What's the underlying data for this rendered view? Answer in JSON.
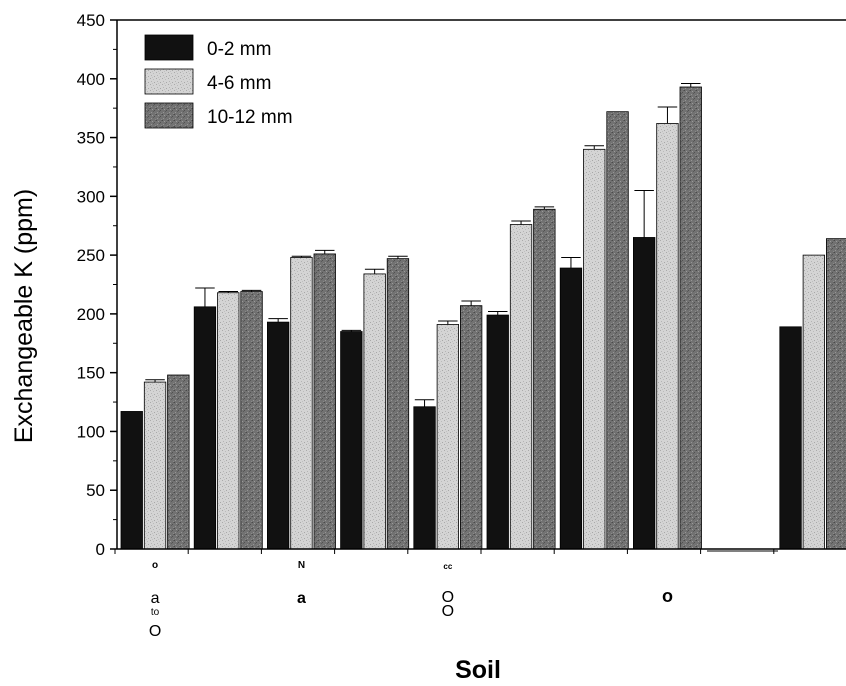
{
  "chart_data": {
    "type": "bar",
    "title": "",
    "xlabel": "Soil",
    "ylabel": "Exchangeable K (ppm)",
    "ylim": [
      0,
      450
    ],
    "yticks": [
      0,
      50,
      100,
      150,
      200,
      250,
      300,
      350,
      400,
      450
    ],
    "grid": false,
    "legend_position": "top-left",
    "categories": [
      "",
      "",
      "",
      "",
      "",
      "",
      "",
      "",
      "",
      ""
    ],
    "series": [
      {
        "name": "0-2 mm",
        "color": "#111111",
        "values": [
          117,
          206,
          193,
          185,
          121,
          199,
          239,
          265,
          null,
          189
        ],
        "errors": [
          0,
          16,
          3,
          1,
          6,
          3,
          9,
          40,
          null,
          0
        ]
      },
      {
        "name": "4-6 mm",
        "color": "#d4d4d4",
        "values": [
          142,
          218,
          248,
          234,
          191,
          276,
          340,
          362,
          null,
          250
        ],
        "errors": [
          2,
          1,
          1,
          4,
          3,
          3,
          3,
          14,
          null,
          0
        ]
      },
      {
        "name": "10-12 mm",
        "color": "#727272",
        "values": [
          148,
          219,
          251,
          247,
          207,
          289,
          372,
          393,
          null,
          264
        ],
        "errors": [
          0,
          1,
          3,
          2,
          4,
          2,
          0,
          3,
          null,
          0
        ]
      }
    ],
    "annotations": [
      {
        "text": "o",
        "cat": 0,
        "row": 0
      },
      {
        "text": "a",
        "cat": 0,
        "row": 1
      },
      {
        "text": "to",
        "cat": 0,
        "row": 2
      },
      {
        "text": "O",
        "cat": 0,
        "row": 3
      },
      {
        "text": "N",
        "cat": 2,
        "row": 0
      },
      {
        "text": "a",
        "cat": 2,
        "row": 1
      },
      {
        "text": "cc",
        "cat": 4,
        "row": 0
      },
      {
        "text": "O",
        "cat": 4,
        "row": 1
      },
      {
        "text": "O",
        "cat": 4,
        "row": 2
      },
      {
        "text": "o",
        "cat": 7,
        "row": 1
      }
    ]
  }
}
